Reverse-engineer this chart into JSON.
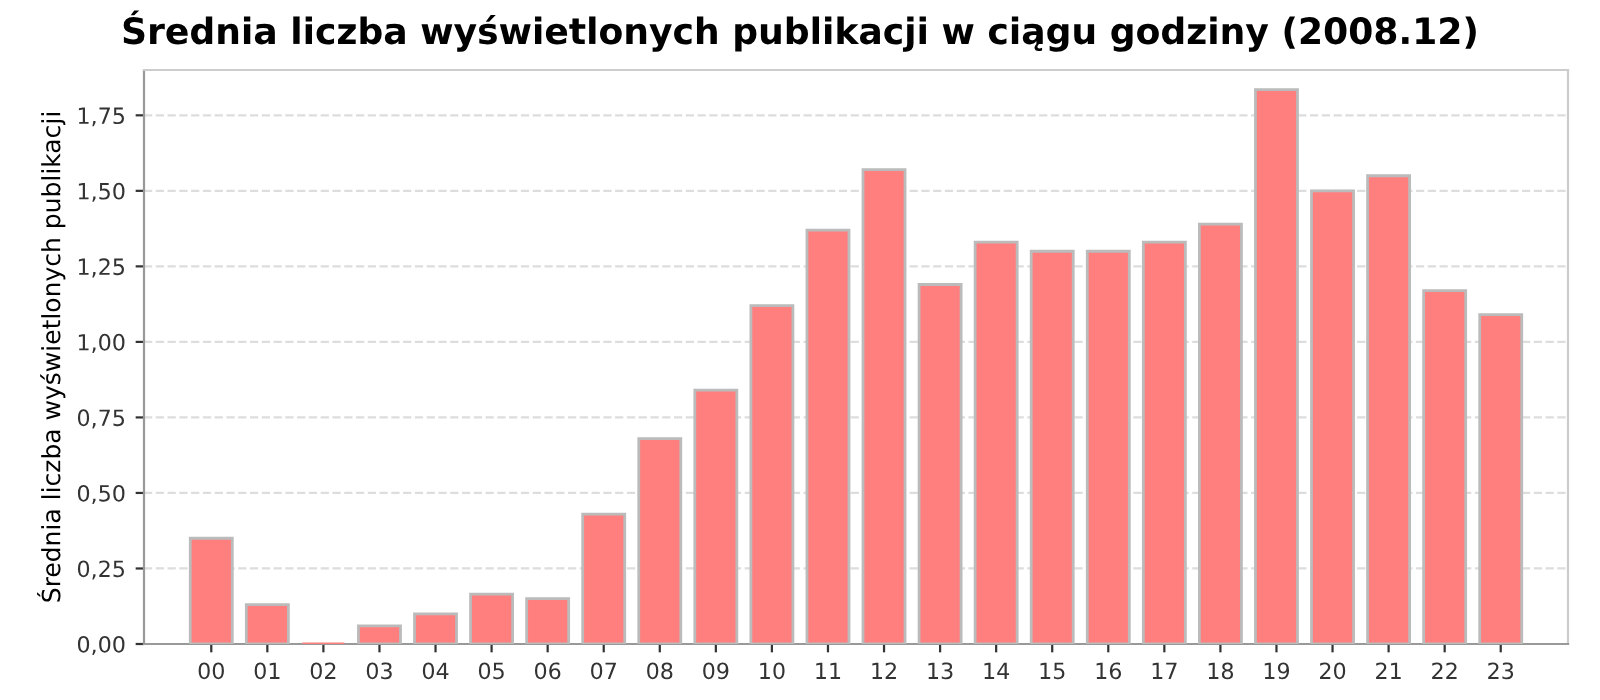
{
  "chart_data": {
    "type": "bar",
    "title": "Średnia liczba wyświetlonych publikacji w ciągu godziny (2008.12)",
    "ylabel": "Średnia liczba wyświetlonych publikacji",
    "categories": [
      "00",
      "01",
      "02",
      "03",
      "04",
      "05",
      "06",
      "07",
      "08",
      "09",
      "10",
      "11",
      "12",
      "13",
      "14",
      "15",
      "16",
      "17",
      "18",
      "19",
      "20",
      "21",
      "22",
      "23"
    ],
    "values": [
      0.35,
      0.13,
      0,
      0.06,
      0.1,
      0.165,
      0.15,
      0.43,
      0.68,
      0.84,
      1.12,
      1.37,
      1.57,
      1.19,
      1.33,
      1.3,
      1.3,
      1.33,
      1.39,
      1.835,
      1.5,
      1.55,
      1.17,
      1.09
    ],
    "color": "#ff7f7f",
    "ylim": [
      0,
      1.9
    ],
    "yticks": [
      {
        "value": 0,
        "label": "0,00"
      },
      {
        "value": 0.25,
        "label": "0,25"
      },
      {
        "value": 0.5,
        "label": "0,50"
      },
      {
        "value": 0.75,
        "label": "0,75"
      },
      {
        "value": 1.0,
        "label": "1,00"
      },
      {
        "value": 1.25,
        "label": "1,25"
      },
      {
        "value": 1.5,
        "label": "1,50"
      },
      {
        "value": 1.75,
        "label": "1,75"
      }
    ],
    "grid": "y"
  }
}
